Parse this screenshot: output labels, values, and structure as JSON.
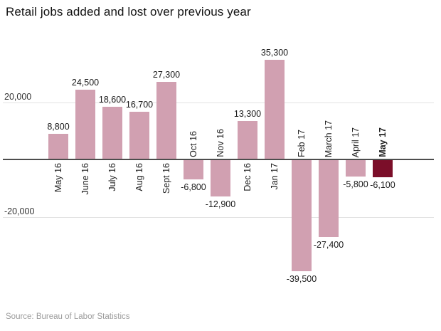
{
  "title": "Retail jobs added and lost over previous year",
  "source": "Source: Bureau of Labor Statistics",
  "colors": {
    "bar": "#d1a0b1",
    "highlight_bar": "#7b0e29",
    "zero_axis": "#4d4d4d",
    "gridline": "#e2e2e2",
    "title_text": "#121212",
    "label_text": "#1a1a1a",
    "source_text": "#9b9b9b"
  },
  "chart_data": {
    "type": "bar",
    "title": "Retail jobs added and lost over previous year",
    "categories": [
      "May 16",
      "June 16",
      "July 16",
      "Aug 16",
      "Sept 16",
      "Oct 16",
      "Nov 16",
      "Dec 16",
      "Jan 17",
      "Feb 17",
      "March 17",
      "April 17",
      "May 17"
    ],
    "values": [
      8800,
      24500,
      18600,
      16700,
      27300,
      -6800,
      -12900,
      13300,
      35300,
      -39500,
      -27400,
      -5800,
      -6100
    ],
    "value_labels": [
      "8,800",
      "24,500",
      "18,600",
      "16,700",
      "27,300",
      "-6,800",
      "-12,900",
      "13,300",
      "35,300",
      "-39,500",
      "-27,400",
      "-5,800",
      "-6,100"
    ],
    "highlight_index": 12,
    "yticks": [
      {
        "value": 20000,
        "label": "20,000"
      },
      {
        "value": -20000,
        "label": "-20,000"
      }
    ],
    "ylim": [
      -45000,
      40000
    ],
    "grid": "horizontal",
    "legend": "none",
    "xlabel": "",
    "ylabel": ""
  }
}
